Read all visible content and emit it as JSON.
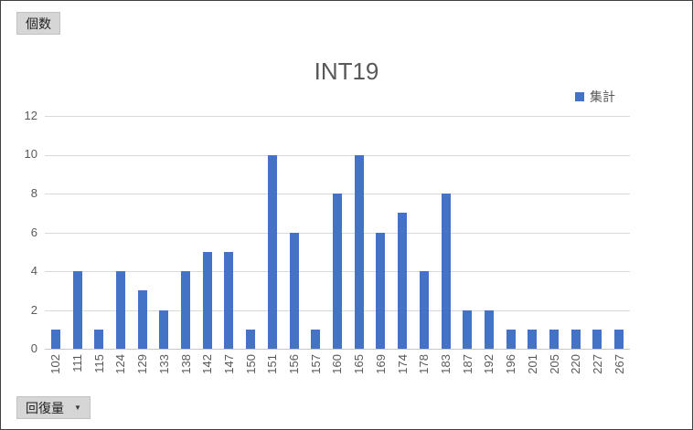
{
  "field_buttons": {
    "value_field": "個数",
    "axis_field": "回復量",
    "dropdown_icon": "▼"
  },
  "chart_data": {
    "type": "bar",
    "title": "INT19",
    "legend": {
      "label": "集計",
      "position": "top-right"
    },
    "categories": [
      "102",
      "111",
      "115",
      "124",
      "129",
      "133",
      "138",
      "142",
      "147",
      "150",
      "151",
      "156",
      "157",
      "160",
      "165",
      "169",
      "174",
      "178",
      "183",
      "187",
      "192",
      "196",
      "201",
      "205",
      "220",
      "227",
      "267"
    ],
    "values": [
      1,
      4,
      1,
      4,
      3,
      2,
      4,
      5,
      5,
      1,
      10,
      6,
      1,
      8,
      10,
      6,
      7,
      4,
      8,
      2,
      2,
      1,
      1,
      1,
      1,
      1,
      1
    ],
    "xlabel": "回復量",
    "ylabel": "個数",
    "ylim": [
      0,
      12
    ],
    "yticks": [
      0,
      2,
      4,
      6,
      8,
      10,
      12
    ],
    "grid": true,
    "colors": {
      "bar": "#4472C4",
      "gridline": "#D9D9D9",
      "axis_line": "#C8C8C8",
      "text": "#595959"
    }
  }
}
